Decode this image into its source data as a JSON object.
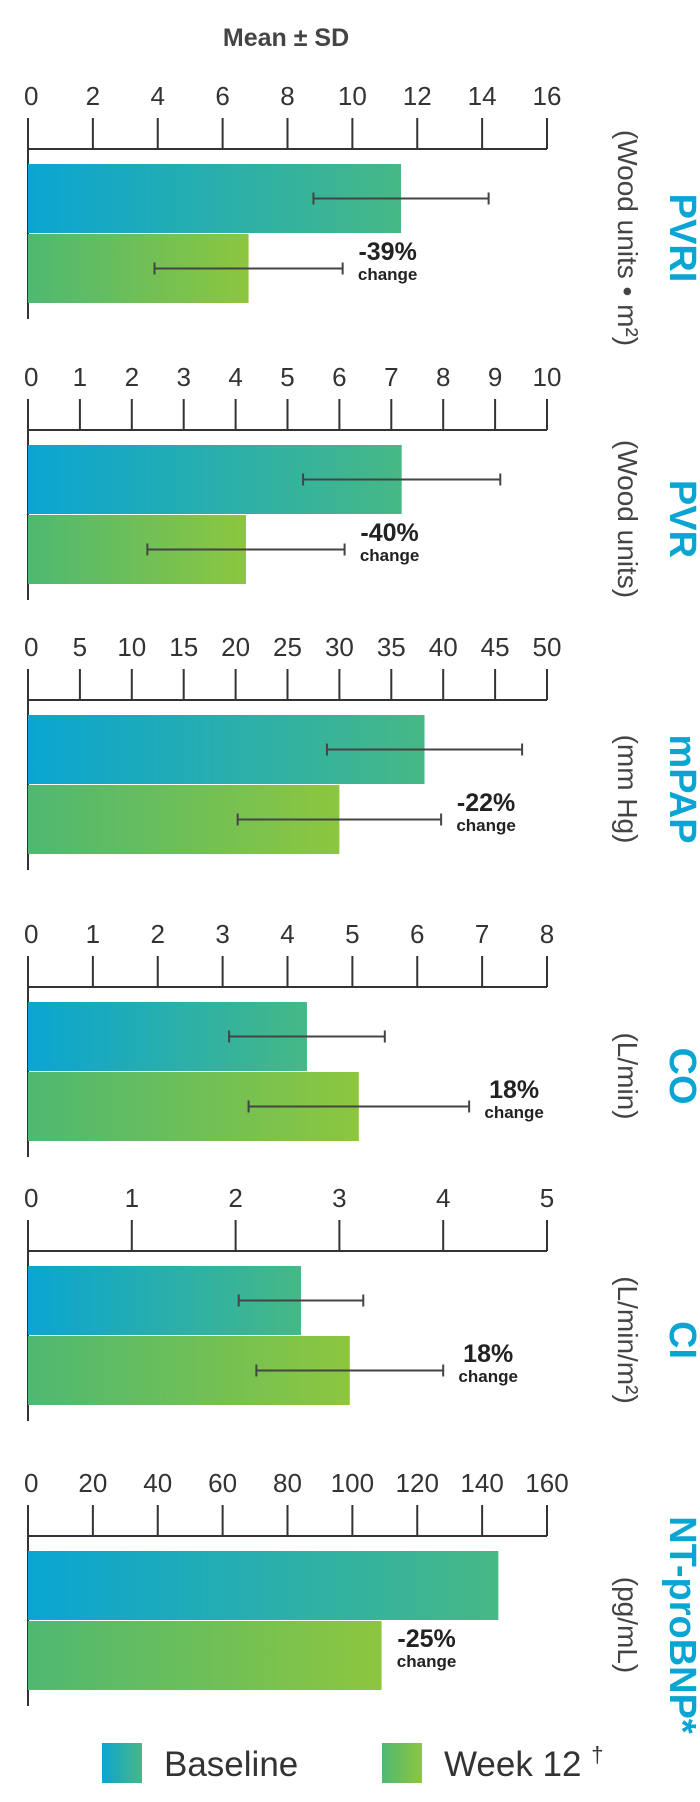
{
  "header": {
    "text": "Mean ± SD"
  },
  "colors": {
    "baseline_start": "#0aa5d2",
    "baseline_end": "#47b886",
    "week12_start": "#4fb872",
    "week12_end": "#8dc63f",
    "title": "#0aa5d2",
    "axis": "#333333",
    "errbar": "#444444"
  },
  "legend": {
    "baseline": "Baseline",
    "week12": "Week 12",
    "week12_mark": "†"
  },
  "chart_data": [
    {
      "type": "bar",
      "orientation": "horizontal",
      "title": "PVRI",
      "units": "(Wood units • m²)",
      "xlim": [
        0,
        16
      ],
      "ticks": [
        "0",
        "2",
        "4",
        "6",
        "8",
        "10",
        "12",
        "14",
        "16"
      ],
      "series": [
        {
          "name": "Baseline",
          "value": 11.5,
          "sd": 2.7
        },
        {
          "name": "Week 12",
          "value": 6.8,
          "sd": 2.9
        }
      ],
      "change_pct": "-39%",
      "change_label": "change"
    },
    {
      "type": "bar",
      "orientation": "horizontal",
      "title": "PVR",
      "units": "(Wood units)",
      "xlim": [
        0,
        10
      ],
      "ticks": [
        "0",
        "1",
        "2",
        "3",
        "4",
        "5",
        "6",
        "7",
        "8",
        "9",
        "10"
      ],
      "series": [
        {
          "name": "Baseline",
          "value": 7.2,
          "sd": 1.9
        },
        {
          "name": "Week 12",
          "value": 4.2,
          "sd": 1.9
        }
      ],
      "change_pct": "-40%",
      "change_label": "change"
    },
    {
      "type": "bar",
      "orientation": "horizontal",
      "title": "mPAP",
      "units": "(mm Hg)",
      "xlim": [
        0,
        50
      ],
      "ticks": [
        "0",
        "5",
        "10",
        "15",
        "20",
        "25",
        "30",
        "35",
        "40",
        "45",
        "50"
      ],
      "series": [
        {
          "name": "Baseline",
          "value": 38.2,
          "sd": 9.4
        },
        {
          "name": "Week 12",
          "value": 30.0,
          "sd": 9.8
        }
      ],
      "change_pct": "-22%",
      "change_label": "change"
    },
    {
      "type": "bar",
      "orientation": "horizontal",
      "title": "CO",
      "units": "(L/min)",
      "xlim": [
        0,
        8
      ],
      "ticks": [
        "0",
        "1",
        "2",
        "3",
        "4",
        "5",
        "6",
        "7",
        "8"
      ],
      "series": [
        {
          "name": "Baseline",
          "value": 4.3,
          "sd": 1.2
        },
        {
          "name": "Week 12",
          "value": 5.1,
          "sd": 1.7
        }
      ],
      "change_pct": "18%",
      "change_label": "change"
    },
    {
      "type": "bar",
      "orientation": "horizontal",
      "title": "CI",
      "units": "(L/min/m²)",
      "xlim": [
        0,
        5
      ],
      "ticks": [
        "0",
        "1",
        "2",
        "3",
        "4",
        "5"
      ],
      "series": [
        {
          "name": "Baseline",
          "value": 2.63,
          "sd": 0.6
        },
        {
          "name": "Week 12",
          "value": 3.1,
          "sd": 0.9
        }
      ],
      "change_pct": "18%",
      "change_label": "change"
    },
    {
      "type": "bar",
      "orientation": "horizontal",
      "title": "NT-proBNP*",
      "units": "(pg/mL)",
      "xlim": [
        0,
        160
      ],
      "ticks": [
        "0",
        "20",
        "40",
        "60",
        "80",
        "100",
        "120",
        "140",
        "160"
      ],
      "series": [
        {
          "name": "Baseline",
          "value": 145
        },
        {
          "name": "Week 12",
          "value": 109
        }
      ],
      "change_pct": "-25%",
      "change_label": "change"
    }
  ]
}
